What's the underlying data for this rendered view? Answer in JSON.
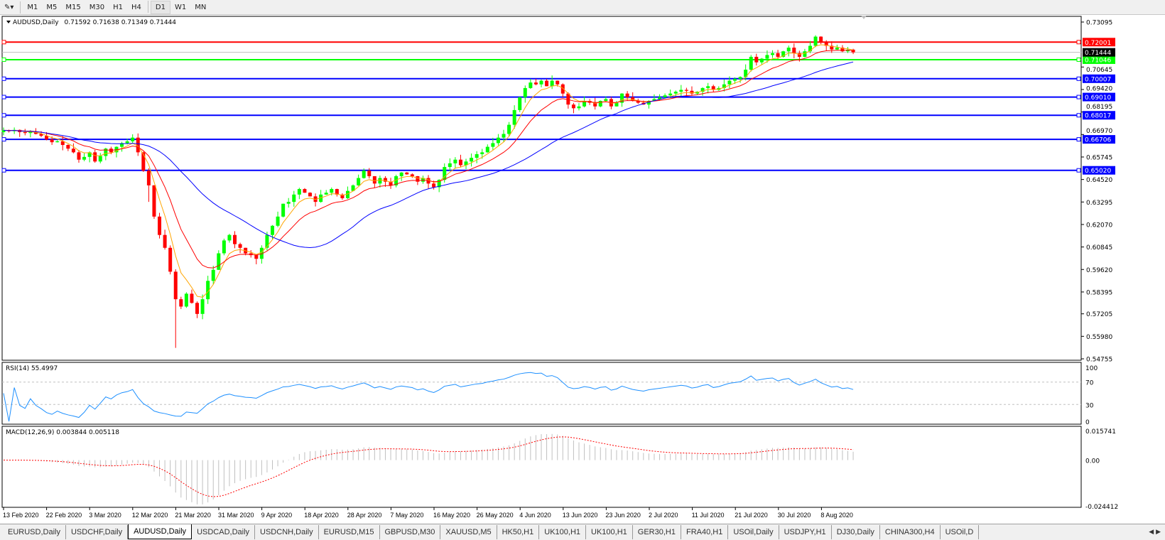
{
  "toolbar": {
    "timeframes": [
      "M1",
      "M5",
      "M15",
      "M30",
      "H1",
      "H4",
      "D1",
      "W1",
      "MN"
    ],
    "selected": "D1"
  },
  "chart": {
    "symbol_label": "AUDUSD,Daily",
    "ohlc_label": "0.71592 0.71638 0.71349 0.71444",
    "current_price": "0.71444",
    "price_ticks": [
      "0.73095",
      "0.70645",
      "0.69420",
      "0.68195",
      "0.66970",
      "0.65745",
      "0.64520",
      "0.63295",
      "0.62070",
      "0.60845",
      "0.59620",
      "0.58395",
      "0.57205",
      "0.55980",
      "0.54755"
    ],
    "date_labels": [
      "13 Feb 2020",
      "22 Feb 2020",
      "3 Mar 2020",
      "12 Mar 2020",
      "21 Mar 2020",
      "31 Mar 2020",
      "9 Apr 2020",
      "18 Apr 2020",
      "28 Apr 2020",
      "7 May 2020",
      "16 May 2020",
      "26 May 2020",
      "4 Jun 2020",
      "13 Jun 2020",
      "23 Jun 2020",
      "2 Jul 2020",
      "11 Jul 2020",
      "21 Jul 2020",
      "30 Jul 2020",
      "8 Aug 2020"
    ],
    "levels": [
      {
        "price": "0.72001",
        "color": "#ff0000"
      },
      {
        "price": "0.71046",
        "color": "#00ff00"
      },
      {
        "price": "0.70007",
        "color": "#0000ff"
      },
      {
        "price": "0.69010",
        "color": "#0000ff"
      },
      {
        "price": "0.68017",
        "color": "#0000ff"
      },
      {
        "price": "0.66706",
        "color": "#0000ff"
      },
      {
        "price": "0.65020",
        "color": "#0000ff"
      }
    ],
    "colors": {
      "bull": "#00ff00",
      "bear": "#ff0000",
      "ma_fast": "#ffa500",
      "ma_mid": "#ff0000",
      "ma_slow": "#0000ff",
      "rsi": "#1e90ff",
      "macd_hist": "#c0c0c0",
      "macd_signal": "#ff0000"
    }
  },
  "chart_data": {
    "type": "candlestick",
    "ylim": [
      0.54755,
      0.73095
    ],
    "closes": [
      0.672,
      0.6715,
      0.6722,
      0.671,
      0.6705,
      0.6712,
      0.67,
      0.669,
      0.667,
      0.6655,
      0.666,
      0.664,
      0.662,
      0.66,
      0.656,
      0.6575,
      0.66,
      0.655,
      0.658,
      0.662,
      0.66,
      0.663,
      0.665,
      0.666,
      0.668,
      0.66,
      0.65,
      0.642,
      0.625,
      0.615,
      0.608,
      0.595,
      0.58,
      0.576,
      0.583,
      0.578,
      0.572,
      0.58,
      0.59,
      0.596,
      0.605,
      0.612,
      0.615,
      0.61,
      0.608,
      0.605,
      0.604,
      0.602,
      0.608,
      0.615,
      0.62,
      0.625,
      0.632,
      0.633,
      0.637,
      0.64,
      0.638,
      0.636,
      0.633,
      0.637,
      0.638,
      0.64,
      0.637,
      0.635,
      0.639,
      0.642,
      0.646,
      0.65,
      0.647,
      0.643,
      0.646,
      0.644,
      0.642,
      0.647,
      0.649,
      0.648,
      0.647,
      0.644,
      0.646,
      0.643,
      0.641,
      0.645,
      0.652,
      0.654,
      0.656,
      0.653,
      0.655,
      0.657,
      0.659,
      0.66,
      0.663,
      0.665,
      0.668,
      0.67,
      0.675,
      0.683,
      0.69,
      0.695,
      0.698,
      0.697,
      0.699,
      0.696,
      0.699,
      0.697,
      0.692,
      0.686,
      0.684,
      0.685,
      0.688,
      0.687,
      0.685,
      0.688,
      0.689,
      0.685,
      0.687,
      0.692,
      0.69,
      0.688,
      0.687,
      0.686,
      0.688,
      0.689,
      0.69,
      0.691,
      0.692,
      0.693,
      0.694,
      0.6935,
      0.692,
      0.693,
      0.695,
      0.696,
      0.694,
      0.695,
      0.697,
      0.699,
      0.7,
      0.701,
      0.705,
      0.712,
      0.709,
      0.711,
      0.713,
      0.714,
      0.712,
      0.715,
      0.717,
      0.714,
      0.712,
      0.715,
      0.718,
      0.723,
      0.72,
      0.718,
      0.716,
      0.717,
      0.715,
      0.7159,
      0.7144
    ],
    "last_bar": {
      "open": 0.71592,
      "high": 0.71638,
      "low": 0.71349,
      "close": 0.71444
    }
  },
  "rsi": {
    "label": "RSI(14) 55.4997",
    "ticks": [
      "100",
      "70",
      "30",
      "0"
    ],
    "levels": [
      70,
      30
    ]
  },
  "macd": {
    "label": "MACD(12,26,9) 0.003844 0.005118",
    "ticks": [
      "0.015741",
      "0.00",
      "-0.024412"
    ],
    "range": [
      -0.024412,
      0.015741
    ]
  },
  "tabs": [
    "EURUSD,Daily",
    "USDCHF,Daily",
    "AUDUSD,Daily",
    "USDCAD,Daily",
    "USDCNH,Daily",
    "EURUSD,M15",
    "GBPUSD,M30",
    "XAUUSD,M5",
    "HK50,H1",
    "UK100,H1",
    "UK100,H1",
    "GER30,H1",
    "FRA40,H1",
    "USOil,Daily",
    "USDJPY,H1",
    "DJ30,Daily",
    "CHINA300,H4",
    "USOil,D"
  ],
  "active_tab": "AUDUSD,Daily"
}
